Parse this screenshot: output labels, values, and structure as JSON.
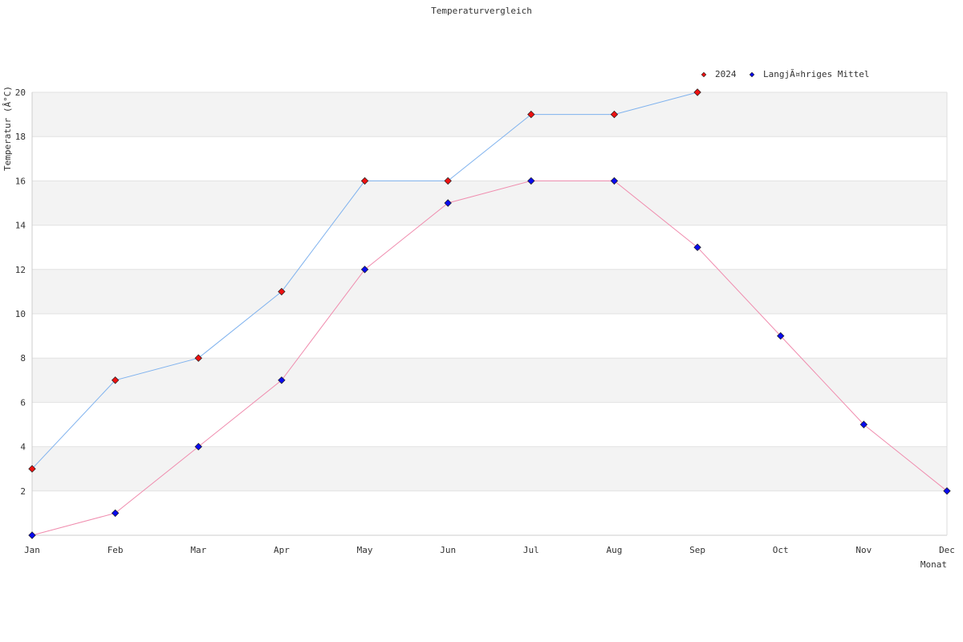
{
  "chart_data": {
    "type": "line",
    "title": "Temperaturvergleich",
    "xlabel": "Monat",
    "ylabel": "Temperatur (Â°C)",
    "categories": [
      "Jan",
      "Feb",
      "Mar",
      "Apr",
      "May",
      "Jun",
      "Jul",
      "Aug",
      "Sep",
      "Oct",
      "Nov",
      "Dec"
    ],
    "yticks": [
      "2",
      "4",
      "6",
      "8",
      "10",
      "12",
      "14",
      "16",
      "18",
      "20"
    ],
    "ylim": [
      0,
      20
    ],
    "grid": "horizontal bands",
    "legend_position": "top-right",
    "series": [
      {
        "name": "2024",
        "line_color": "#7fb2ee",
        "marker_color": "#ee1111",
        "values": [
          3,
          7,
          8,
          11,
          16,
          16,
          19,
          19,
          20,
          null,
          null,
          null
        ]
      },
      {
        "name": "LangjÃ¤hriges Mittel",
        "line_color": "#f08cae",
        "marker_color": "#0a0aee",
        "values": [
          0,
          1,
          4,
          7,
          12,
          15,
          16,
          16,
          13,
          9,
          5,
          2
        ]
      }
    ]
  }
}
